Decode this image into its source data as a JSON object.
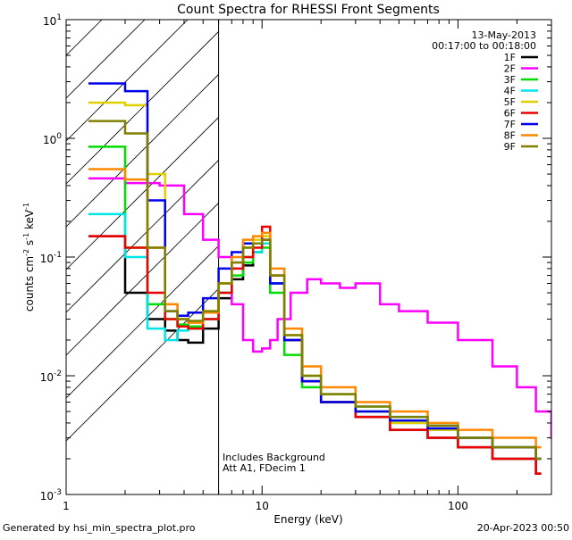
{
  "chart_data": {
    "type": "line",
    "title": "Count Spectra for RHESSI Front Segments",
    "xlabel": "Energy (keV)",
    "ylabel": {
      "base": "counts cm",
      "sup1": "-2",
      "mid": " s",
      "sup2": "-1",
      "unit": " keV",
      "sup3": "-1"
    },
    "x_scale": "log",
    "y_scale": "log",
    "xlim": [
      1,
      300
    ],
    "ylim": [
      0.001,
      10
    ],
    "x_ticks": [
      {
        "value": 1,
        "label": "1"
      },
      {
        "value": 10,
        "label": "10"
      },
      {
        "value": 100,
        "label": "100"
      }
    ],
    "y_ticks": [
      {
        "value": 10,
        "base": "10",
        "exp": "1"
      },
      {
        "value": 1,
        "base": "10",
        "exp": "0"
      },
      {
        "value": 0.1,
        "base": "10",
        "exp": "-1"
      },
      {
        "value": 0.01,
        "base": "10",
        "exp": "-2"
      },
      {
        "value": 0.001,
        "base": "10",
        "exp": "-3"
      }
    ],
    "date": "13-May-2013",
    "time_range": "00:17:00 to 00:18:00",
    "shaded_region": {
      "x_start": 1,
      "x_end": 6,
      "style": "diagonal-hatch"
    },
    "annotations": [
      "Includes Background",
      "Att A1, FDecim 1"
    ],
    "footer_left": "Generated by hsi_min_spectra_plot.pro",
    "footer_right": "20-Apr-2023 00:50",
    "legend_position": "top-right",
    "series": [
      {
        "name": "1F",
        "color": "#000000",
        "energies": [
          1.3,
          2.0,
          2.6,
          3.2,
          3.7,
          4.2,
          5.0,
          6.0,
          7.0,
          8.0,
          9.0,
          10.0,
          11.0,
          13.0,
          16.0,
          20.0,
          30.0,
          45.0,
          70.0,
          100.0,
          150.0,
          250.0
        ],
        "values": [
          0.15,
          0.05,
          0.03,
          0.024,
          0.02,
          0.019,
          0.025,
          0.045,
          0.065,
          0.085,
          0.11,
          0.13,
          0.06,
          0.02,
          0.009,
          0.006,
          0.0045,
          0.0035,
          0.003,
          0.0025,
          0.002,
          0.0015
        ]
      },
      {
        "name": "2F",
        "color": "#ff00ff",
        "energies": [
          1.3,
          2.0,
          3.0,
          4.0,
          5.0,
          6.0,
          7.0,
          8.0,
          9.0,
          10.0,
          11.0,
          12.0,
          14.0,
          17.0,
          20.0,
          25.0,
          30.0,
          40.0,
          50.0,
          70.0,
          100.0,
          150.0,
          200.0,
          250.0,
          300.0
        ],
        "values": [
          0.46,
          0.42,
          0.4,
          0.23,
          0.14,
          0.1,
          0.04,
          0.02,
          0.016,
          0.017,
          0.02,
          0.03,
          0.05,
          0.065,
          0.06,
          0.055,
          0.06,
          0.04,
          0.035,
          0.028,
          0.02,
          0.012,
          0.008,
          0.005,
          0.003
        ]
      },
      {
        "name": "3F",
        "color": "#00dd00",
        "energies": [
          1.3,
          2.0,
          2.6,
          3.2,
          3.7,
          4.2,
          5.0,
          6.0,
          7.0,
          8.0,
          9.0,
          10.0,
          11.0,
          13.0,
          16.0,
          20.0,
          30.0,
          45.0,
          70.0,
          100.0,
          150.0,
          250.0
        ],
        "values": [
          0.85,
          0.12,
          0.04,
          0.03,
          0.027,
          0.026,
          0.03,
          0.05,
          0.07,
          0.09,
          0.11,
          0.12,
          0.05,
          0.015,
          0.008,
          0.006,
          0.005,
          0.004,
          0.0035,
          0.003,
          0.0025,
          0.002
        ]
      },
      {
        "name": "4F",
        "color": "#00e5e5",
        "energies": [
          1.3,
          2.0,
          2.6,
          3.2,
          3.7,
          4.2,
          5.0,
          6.0,
          7.0,
          8.0,
          9.0,
          10.0,
          11.0,
          13.0,
          16.0,
          20.0,
          30.0,
          45.0,
          70.0,
          100.0,
          150.0,
          250.0
        ],
        "values": [
          0.23,
          0.1,
          0.025,
          0.02,
          0.024,
          0.025,
          0.03,
          0.05,
          0.08,
          0.1,
          0.11,
          0.13,
          0.06,
          0.02,
          0.01,
          0.007,
          0.0055,
          0.0045,
          0.0038,
          0.003,
          0.0025,
          0.002
        ]
      },
      {
        "name": "5F",
        "color": "#e0d000",
        "energies": [
          1.3,
          2.0,
          2.6,
          3.2,
          3.7,
          4.2,
          5.0,
          6.0,
          7.0,
          8.0,
          9.0,
          10.0,
          11.0,
          13.0,
          16.0,
          20.0,
          30.0,
          45.0,
          70.0,
          100.0,
          150.0,
          250.0
        ],
        "values": [
          2.0,
          1.9,
          0.5,
          0.04,
          0.03,
          0.028,
          0.035,
          0.06,
          0.09,
          0.12,
          0.14,
          0.15,
          0.07,
          0.022,
          0.01,
          0.007,
          0.005,
          0.004,
          0.0035,
          0.003,
          0.0025,
          0.002
        ]
      },
      {
        "name": "6F",
        "color": "#ee0000",
        "energies": [
          1.3,
          2.0,
          2.6,
          3.2,
          3.7,
          4.2,
          5.0,
          6.0,
          7.0,
          8.0,
          9.0,
          10.0,
          11.0,
          13.0,
          16.0,
          20.0,
          30.0,
          45.0,
          70.0,
          100.0,
          150.0,
          250.0
        ],
        "values": [
          0.15,
          0.12,
          0.05,
          0.03,
          0.026,
          0.025,
          0.03,
          0.05,
          0.08,
          0.1,
          0.12,
          0.18,
          0.07,
          0.02,
          0.009,
          0.006,
          0.0045,
          0.0035,
          0.003,
          0.0025,
          0.002,
          0.0015
        ]
      },
      {
        "name": "7F",
        "color": "#0000ee",
        "energies": [
          1.3,
          2.0,
          2.6,
          3.2,
          3.7,
          4.2,
          5.0,
          6.0,
          7.0,
          8.0,
          9.0,
          10.0,
          11.0,
          13.0,
          16.0,
          20.0,
          30.0,
          45.0,
          70.0,
          100.0,
          150.0,
          250.0
        ],
        "values": [
          2.9,
          2.5,
          0.3,
          0.035,
          0.032,
          0.034,
          0.045,
          0.08,
          0.11,
          0.13,
          0.13,
          0.14,
          0.06,
          0.02,
          0.009,
          0.006,
          0.005,
          0.0042,
          0.0036,
          0.003,
          0.0025,
          0.002
        ]
      },
      {
        "name": "8F",
        "color": "#ff8800",
        "energies": [
          1.3,
          2.0,
          2.6,
          3.2,
          3.7,
          4.2,
          5.0,
          6.0,
          7.0,
          8.0,
          9.0,
          10.0,
          11.0,
          13.0,
          16.0,
          20.0,
          30.0,
          45.0,
          70.0,
          100.0,
          150.0,
          250.0
        ],
        "values": [
          0.55,
          0.45,
          0.12,
          0.04,
          0.03,
          0.028,
          0.034,
          0.06,
          0.1,
          0.14,
          0.15,
          0.16,
          0.08,
          0.025,
          0.012,
          0.008,
          0.006,
          0.005,
          0.004,
          0.0035,
          0.003,
          0.0025
        ]
      },
      {
        "name": "9F",
        "color": "#808000",
        "energies": [
          1.3,
          2.0,
          2.6,
          3.2,
          3.7,
          4.2,
          5.0,
          6.0,
          7.0,
          8.0,
          9.0,
          10.0,
          11.0,
          13.0,
          16.0,
          20.0,
          30.0,
          45.0,
          70.0,
          100.0,
          150.0,
          250.0
        ],
        "values": [
          1.4,
          1.1,
          0.12,
          0.035,
          0.03,
          0.029,
          0.035,
          0.06,
          0.09,
          0.12,
          0.13,
          0.14,
          0.07,
          0.022,
          0.01,
          0.007,
          0.0055,
          0.0045,
          0.0038,
          0.003,
          0.0025,
          0.002
        ]
      }
    ]
  }
}
